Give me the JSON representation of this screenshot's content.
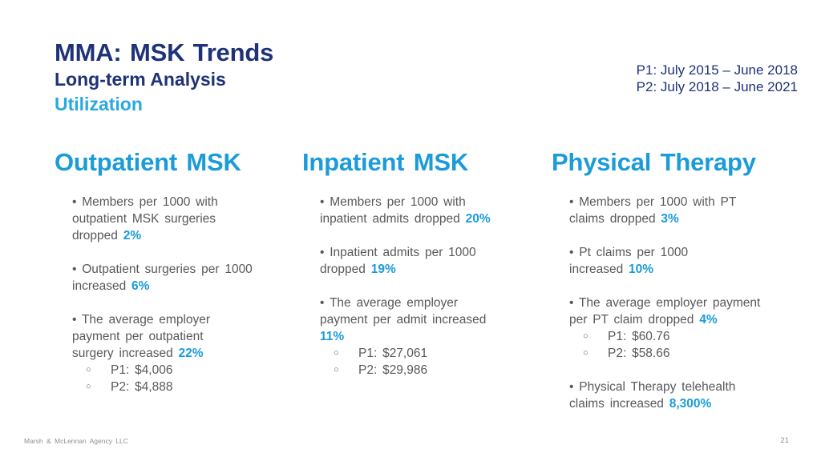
{
  "slide": {
    "title": "MMA: MSK Trends",
    "subtitle": "Long-term Analysis",
    "section": "Utilization",
    "periods": [
      "P1: July 2015 – June 2018",
      "P2: July 2018 – June 2021"
    ],
    "footer": {
      "company": "Marsh & McLennan Agency LLC",
      "page_number": "21"
    }
  },
  "icons": {
    "bullet": "•",
    "sub_bullet": "○"
  },
  "colors": {
    "navy": "#1F3278",
    "accent_blue": "#1B9CD9",
    "section_blue": "#2AA8E1",
    "body_gray": "#58595B",
    "footer_gray": "#8F9093"
  },
  "columns": [
    {
      "header": "Outpatient MSK",
      "bullets": [
        {
          "text": "Members per 1000 with\noutpatient MSK surgeries\ndropped",
          "highlight": "2%"
        },
        {
          "text": "Outpatient surgeries per 1000\nincreased",
          "highlight": "6%"
        },
        {
          "text": "The average employer\npayment per outpatient\nsurgery increased",
          "highlight": "22%",
          "subs": [
            "P1: $4,006",
            "P2: $4,888"
          ]
        }
      ]
    },
    {
      "header": "Inpatient MSK",
      "bullets": [
        {
          "text": "Members per 1000 with\ninpatient admits dropped",
          "highlight": "20%"
        },
        {
          "text": "Inpatient admits per 1000\ndropped",
          "highlight": "19%"
        },
        {
          "text": "The average employer\npayment per admit increased\n",
          "highlight": "11%",
          "subs": [
            "P1: $27,061",
            "P2: $29,986"
          ]
        }
      ]
    },
    {
      "header": "Physical Therapy",
      "bullets": [
        {
          "text": "Members per 1000 with PT\nclaims dropped",
          "highlight": "3%"
        },
        {
          "text": "Pt claims per 1000\nincreased",
          "highlight": "10%"
        },
        {
          "text": "The average employer payment\nper PT claim dropped",
          "highlight": "4%",
          "subs": [
            "P1: $60.76",
            "P2: $58.66"
          ]
        },
        {
          "text": "Physical Therapy telehealth\nclaims increased",
          "highlight": "8,300%"
        }
      ]
    }
  ]
}
